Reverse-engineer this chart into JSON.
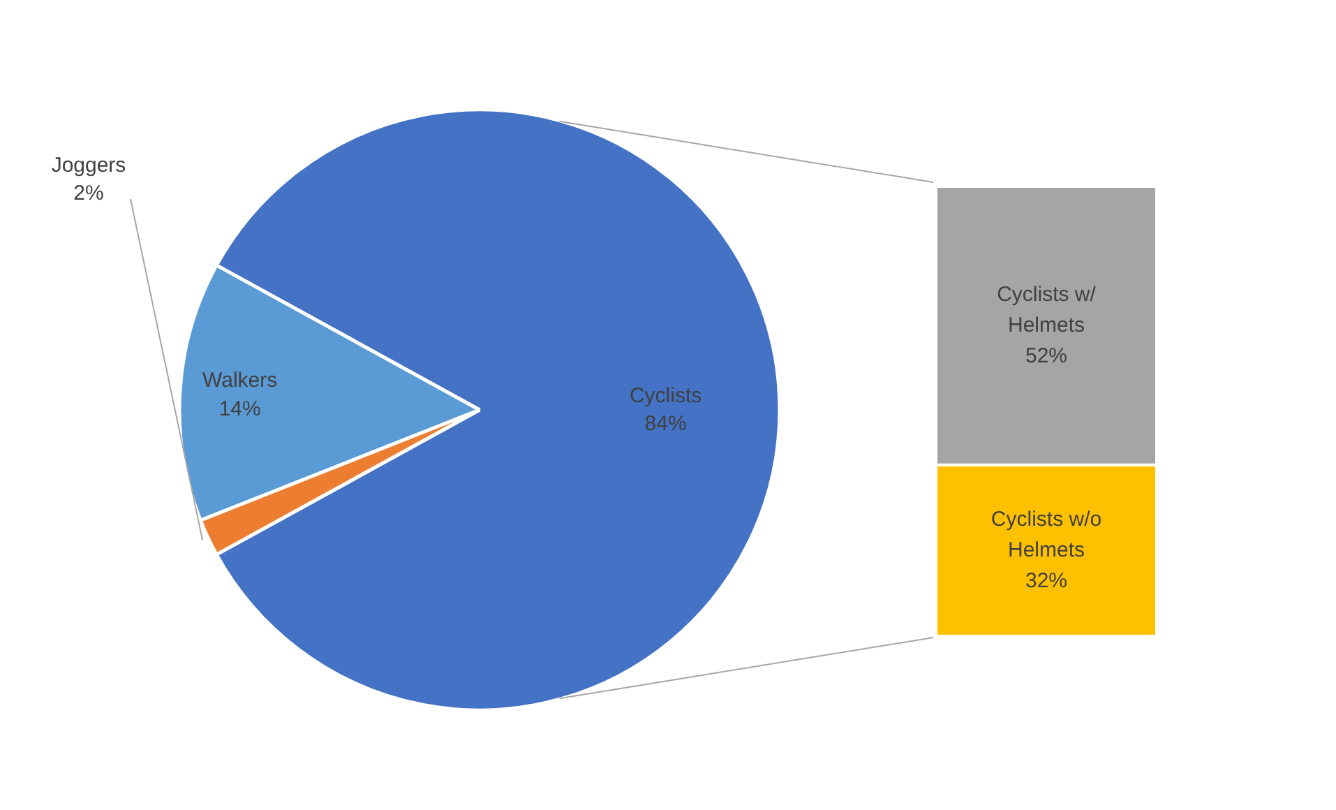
{
  "chart_data": [
    {
      "type": "pie",
      "categories": [
        "Cyclists",
        "Walkers",
        "Joggers"
      ],
      "values": [
        84,
        14,
        2
      ],
      "colors": [
        "#4472c4",
        "#5b9bd5",
        "#ed7d31"
      ],
      "value_labels": [
        "84%",
        "14%",
        "2%"
      ]
    },
    {
      "type": "bar",
      "stacked": true,
      "categories": [
        null
      ],
      "series": [
        {
          "name": "Cyclists w/o Helmets",
          "color": "#ffc000",
          "values": [
            32
          ],
          "value_labels": [
            "32%"
          ]
        },
        {
          "name": "Cyclists w/ Helmets",
          "color": "#a5a5a5",
          "values": [
            52
          ],
          "value_labels": [
            "52%"
          ]
        }
      ]
    }
  ]
}
